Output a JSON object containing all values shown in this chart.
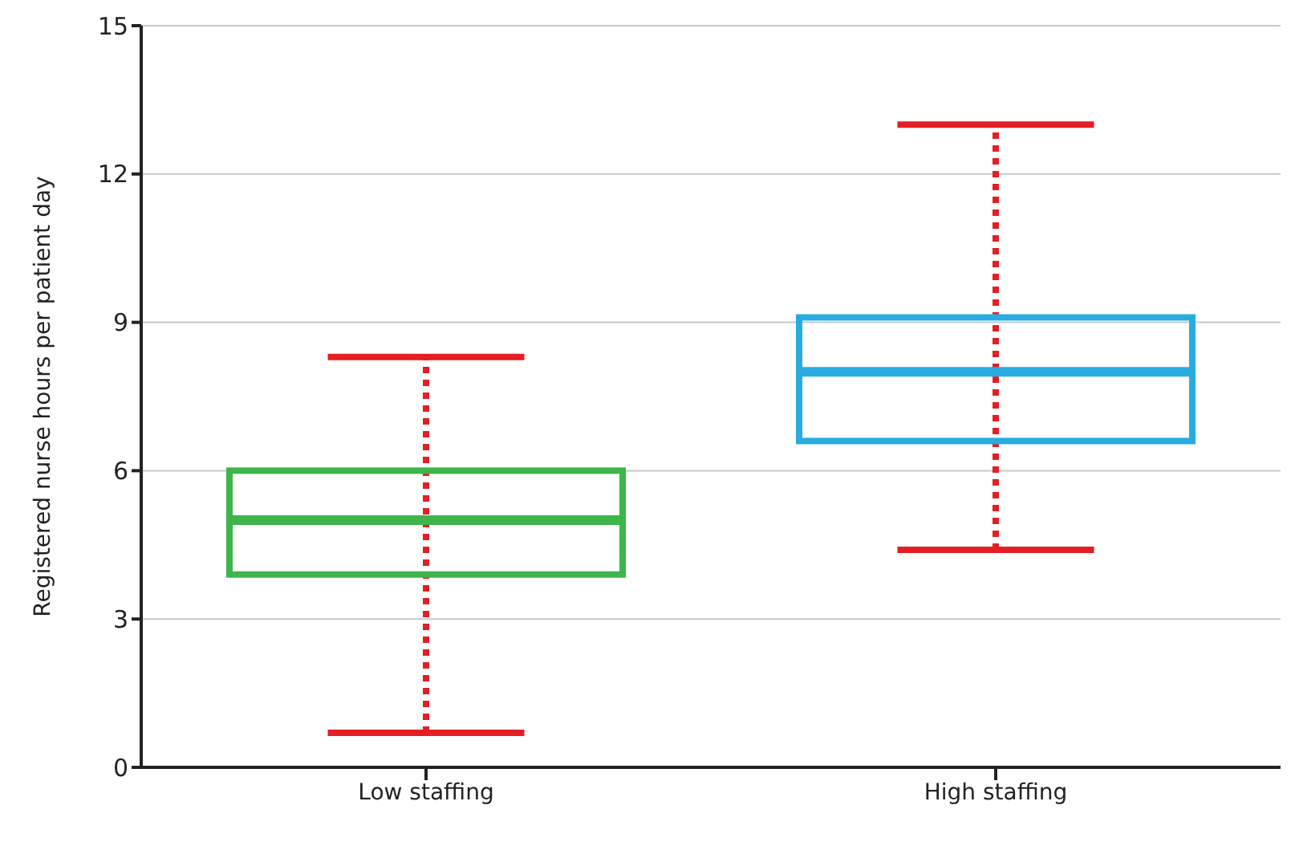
{
  "chart_data": {
    "type": "box",
    "ylabel": "Registered nurse hours per patient day",
    "categories": [
      "Low staffing",
      "High staffing"
    ],
    "boxes": [
      {
        "low": 0.7,
        "q1": 3.9,
        "median": 5.0,
        "q3": 6.0,
        "high": 8.3
      },
      {
        "low": 4.4,
        "q1": 6.6,
        "median": 8.0,
        "q3": 9.1,
        "high": 13.0
      }
    ],
    "colors": [
      "#3db54a",
      "#29abe2"
    ],
    "ylim": [
      0,
      15
    ],
    "yticks": [
      0,
      3,
      6,
      9,
      12,
      15
    ],
    "grid": "y",
    "line_style": "dotted"
  }
}
